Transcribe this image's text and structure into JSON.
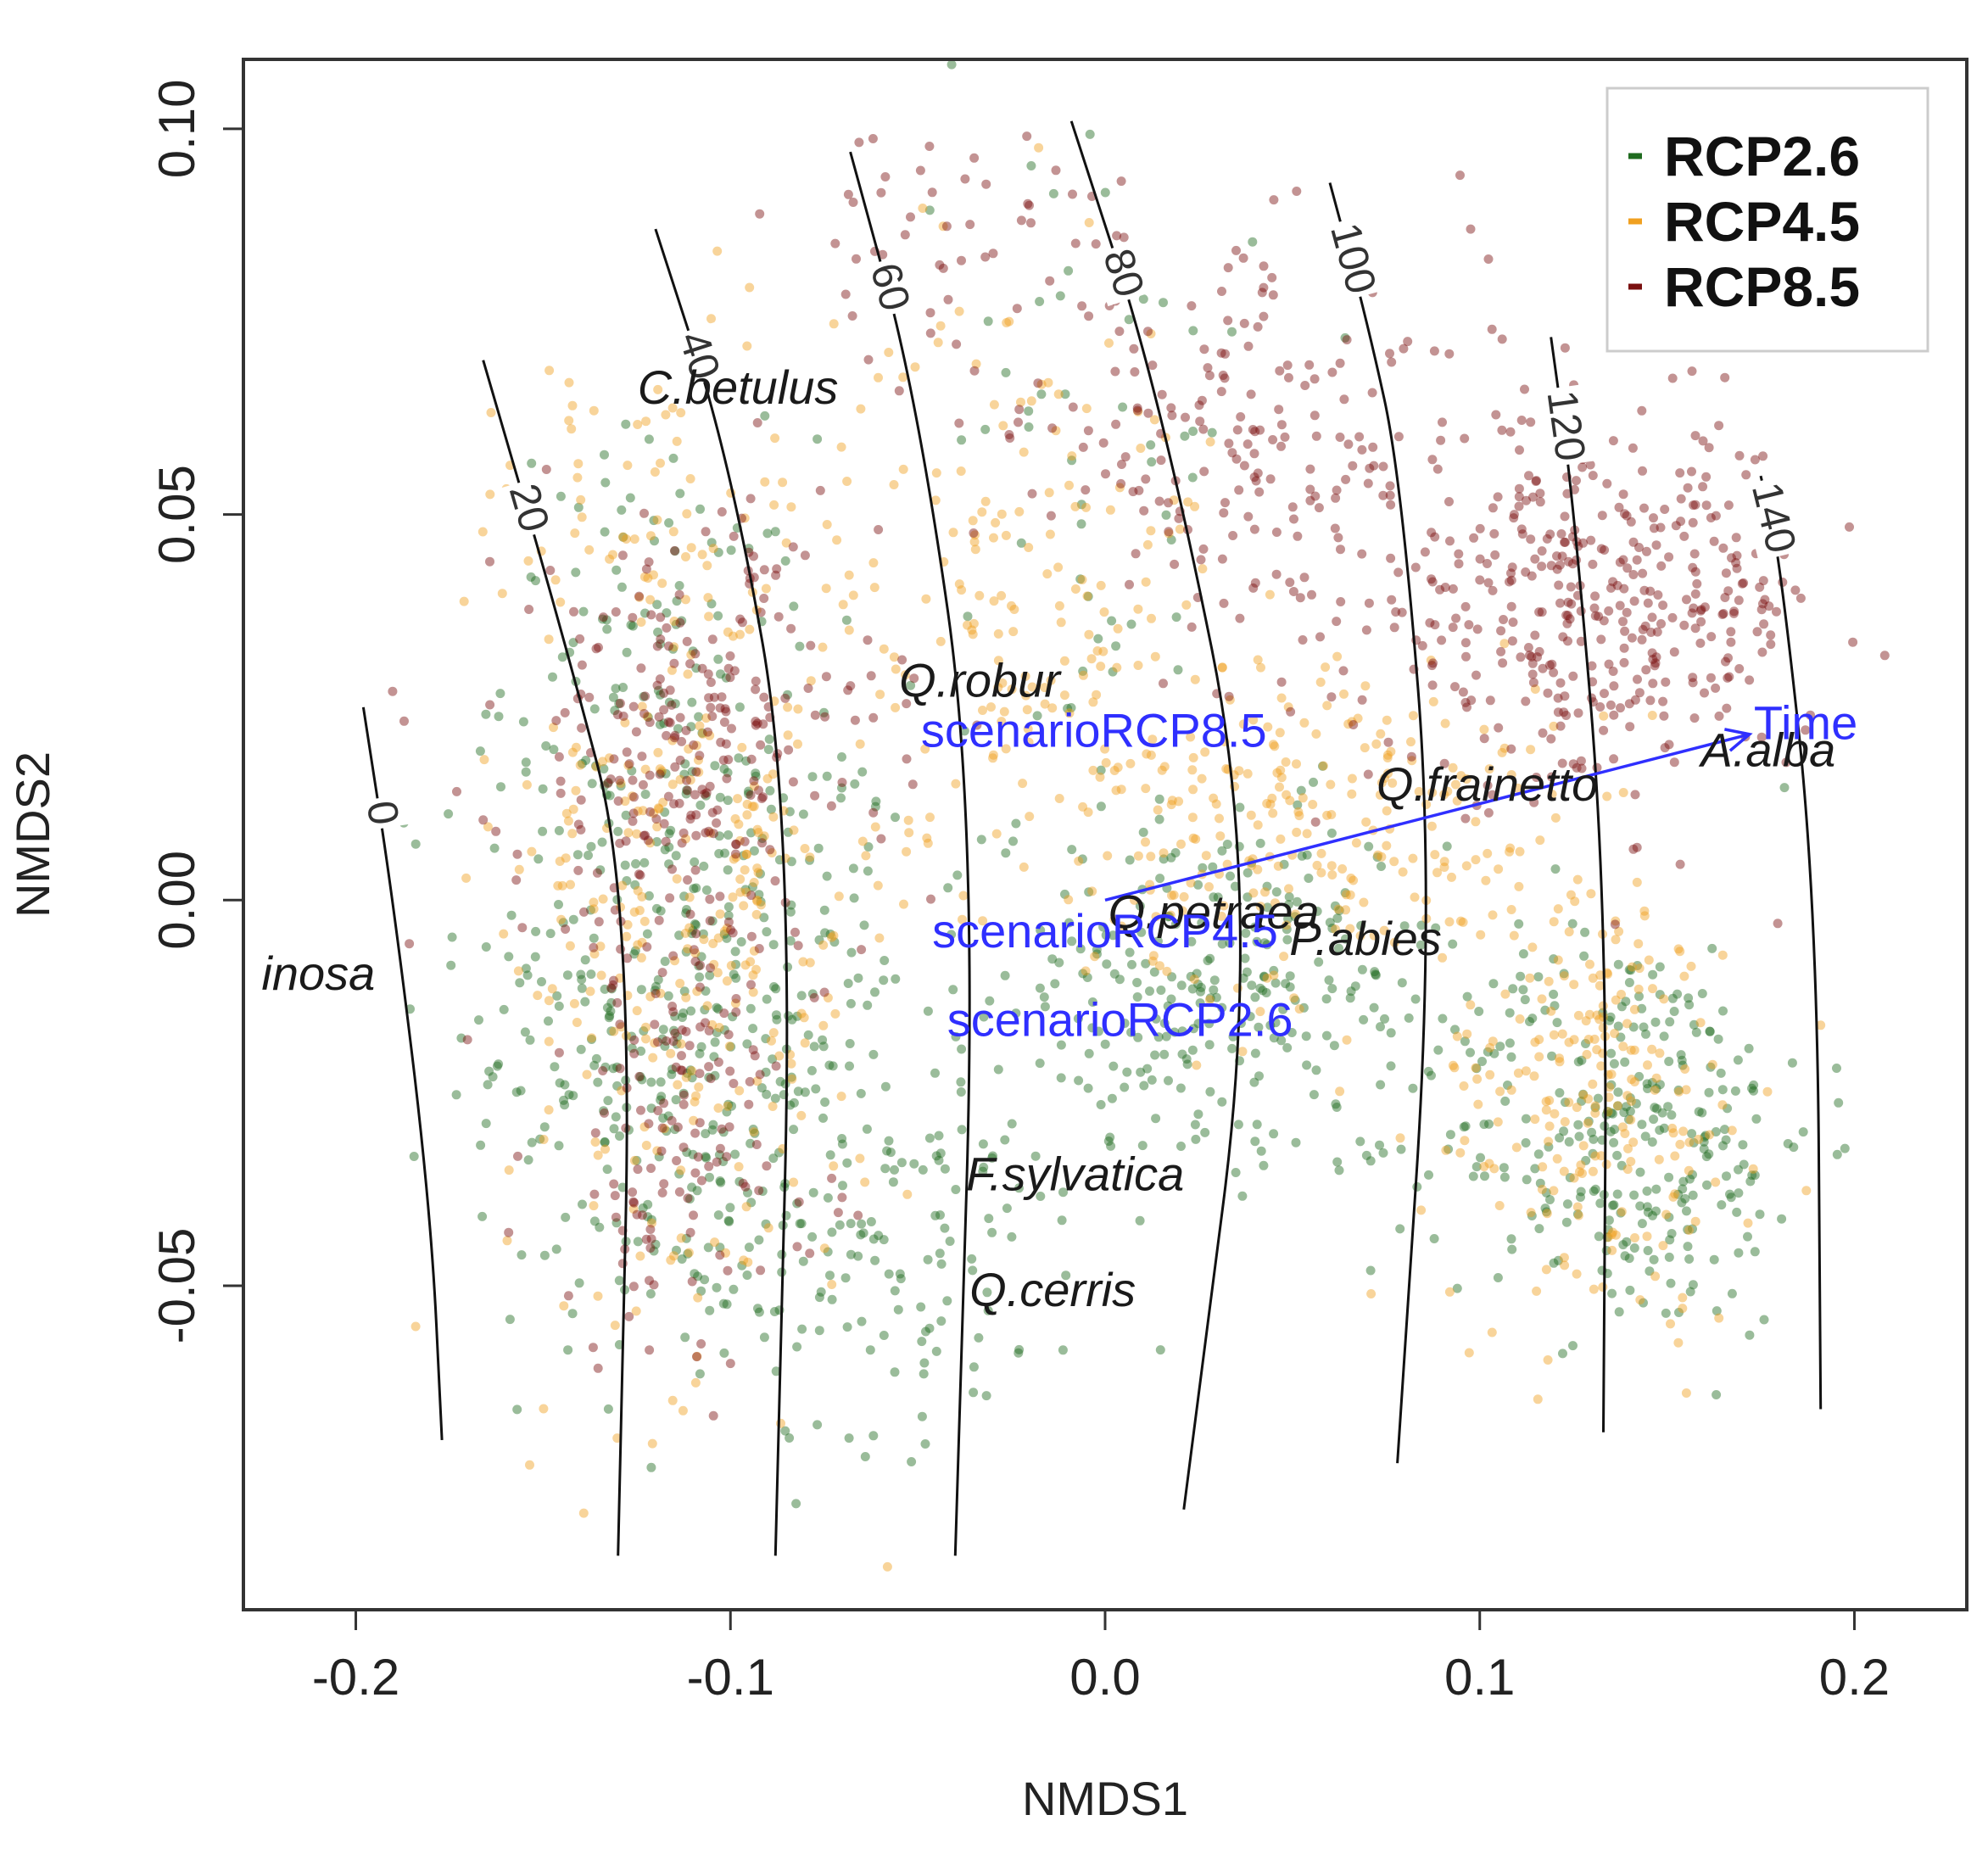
{
  "chart_data": {
    "type": "scatter",
    "xlabel": "NMDS1",
    "ylabel": "NMDS2",
    "xlim": [
      -0.23,
      0.23
    ],
    "ylim": [
      -0.092,
      0.109
    ],
    "xticks": [
      -0.2,
      -0.1,
      0.0,
      0.1,
      0.2
    ],
    "xtick_labels": [
      "-0.2",
      "-0.1",
      "0.0",
      "0.1",
      "0.2"
    ],
    "yticks": [
      -0.05,
      0.0,
      0.05,
      0.1
    ],
    "ytick_labels": [
      "-0.05",
      "0.00",
      "0.05",
      "0.10"
    ],
    "grid": false,
    "legend_position": "top-right",
    "series": [
      {
        "name": "RCP2.6",
        "color": "#1f6b1f",
        "clusters": [
          {
            "cx": -0.11,
            "cy": -0.015,
            "sx": 0.03,
            "sy": 0.022,
            "n": 420
          },
          {
            "cx": -0.12,
            "cy": 0.03,
            "sx": 0.02,
            "sy": 0.015,
            "n": 110
          },
          {
            "cx": 0.03,
            "cy": -0.012,
            "sx": 0.03,
            "sy": 0.012,
            "n": 280
          },
          {
            "cx": 0.14,
            "cy": -0.03,
            "sx": 0.025,
            "sy": 0.013,
            "n": 300
          },
          {
            "cx": -0.06,
            "cy": -0.045,
            "sx": 0.03,
            "sy": 0.012,
            "n": 130
          },
          {
            "cx": 0.0,
            "cy": 0.06,
            "sx": 0.02,
            "sy": 0.03,
            "n": 60
          }
        ]
      },
      {
        "name": "RCP4.5",
        "color": "#f0a020",
        "clusters": [
          {
            "cx": -0.11,
            "cy": 0.0,
            "sx": 0.025,
            "sy": 0.03,
            "n": 330
          },
          {
            "cx": -0.02,
            "cy": 0.04,
            "sx": 0.025,
            "sy": 0.02,
            "n": 180
          },
          {
            "cx": 0.06,
            "cy": 0.01,
            "sx": 0.03,
            "sy": 0.012,
            "n": 230
          },
          {
            "cx": 0.13,
            "cy": -0.025,
            "sx": 0.022,
            "sy": 0.015,
            "n": 220
          },
          {
            "cx": -0.13,
            "cy": 0.055,
            "sx": 0.02,
            "sy": 0.01,
            "n": 40
          }
        ]
      },
      {
        "name": "RCP8.5",
        "color": "#7a1010",
        "clusters": [
          {
            "cx": -0.11,
            "cy": 0.02,
            "sx": 0.025,
            "sy": 0.015,
            "n": 260
          },
          {
            "cx": -0.115,
            "cy": -0.03,
            "sx": 0.02,
            "sy": 0.015,
            "n": 140
          },
          {
            "cx": 0.04,
            "cy": 0.06,
            "sx": 0.03,
            "sy": 0.012,
            "n": 180
          },
          {
            "cx": 0.13,
            "cy": 0.038,
            "sx": 0.03,
            "sy": 0.012,
            "n": 420
          },
          {
            "cx": -0.04,
            "cy": 0.085,
            "sx": 0.025,
            "sy": 0.01,
            "n": 60
          }
        ]
      }
    ],
    "contours": [
      {
        "label": "0",
        "points": [
          [
            -0.198,
            0.025
          ],
          [
            -0.19,
            0.0
          ],
          [
            -0.18,
            -0.04
          ],
          [
            -0.177,
            -0.07
          ]
        ]
      },
      {
        "label": "20",
        "points": [
          [
            -0.166,
            0.07
          ],
          [
            -0.145,
            0.035
          ],
          [
            -0.126,
            0.0
          ],
          [
            -0.13,
            -0.085
          ]
        ]
      },
      {
        "label": "40",
        "points": [
          [
            -0.12,
            0.087
          ],
          [
            -0.1,
            0.057
          ],
          [
            -0.083,
            0.01
          ],
          [
            -0.088,
            -0.085
          ]
        ]
      },
      {
        "label": "60",
        "points": [
          [
            -0.068,
            0.097
          ],
          [
            -0.05,
            0.065
          ],
          [
            -0.034,
            0.01
          ],
          [
            -0.04,
            -0.085
          ]
        ]
      },
      {
        "label": "80",
        "points": [
          [
            -0.009,
            0.101
          ],
          [
            0.015,
            0.065
          ],
          [
            0.042,
            0.0
          ],
          [
            0.021,
            -0.079
          ]
        ]
      },
      {
        "label": "100",
        "points": [
          [
            0.06,
            0.093
          ],
          [
            0.07,
            0.075
          ],
          [
            0.079,
            0.055
          ],
          [
            0.088,
            0.0
          ],
          [
            0.078,
            -0.073
          ]
        ]
      },
      {
        "label": "120",
        "points": [
          [
            0.119,
            0.073
          ],
          [
            0.125,
            0.052
          ],
          [
            0.134,
            0.0
          ],
          [
            0.133,
            -0.069
          ]
        ]
      },
      {
        "label": "140",
        "points": [
          [
            0.175,
            0.055
          ],
          [
            0.18,
            0.045
          ],
          [
            0.19,
            0.0
          ],
          [
            0.191,
            -0.066
          ]
        ]
      }
    ],
    "species_labels": [
      {
        "text": "C.betulus",
        "x": -0.098,
        "y": 0.066
      },
      {
        "text": "Q.robur",
        "x": -0.0335,
        "y": 0.028
      },
      {
        "text": "Q.frainetto",
        "x": 0.102,
        "y": 0.0145
      },
      {
        "text": "A.alba",
        "x": 0.177,
        "y": 0.019
      },
      {
        "text": "Q.petraea",
        "x": 0.029,
        "y": -0.002
      },
      {
        "text": "P.abies",
        "x": 0.0695,
        "y": -0.0055
      },
      {
        "text": "inosa",
        "x": -0.21,
        "y": -0.01
      },
      {
        "text": "F.sylvatica",
        "x": -0.008,
        "y": -0.036
      },
      {
        "text": "Q.cerris",
        "x": -0.014,
        "y": -0.051
      }
    ],
    "env_labels": [
      {
        "text": "scenarioRCP8.5",
        "x": -0.003,
        "y": 0.0215
      },
      {
        "text": "scenarioRCP4.5",
        "x": 0.0,
        "y": -0.0045
      },
      {
        "text": "scenarioRCP2.6",
        "x": 0.004,
        "y": -0.016
      }
    ],
    "vector": {
      "label": "Time",
      "x_start": 0.0,
      "y_start": 0.0,
      "x_end": 0.172,
      "y_end": 0.0215,
      "label_x": 0.187,
      "label_y": 0.0225
    },
    "env_color": "#2f2fff"
  }
}
